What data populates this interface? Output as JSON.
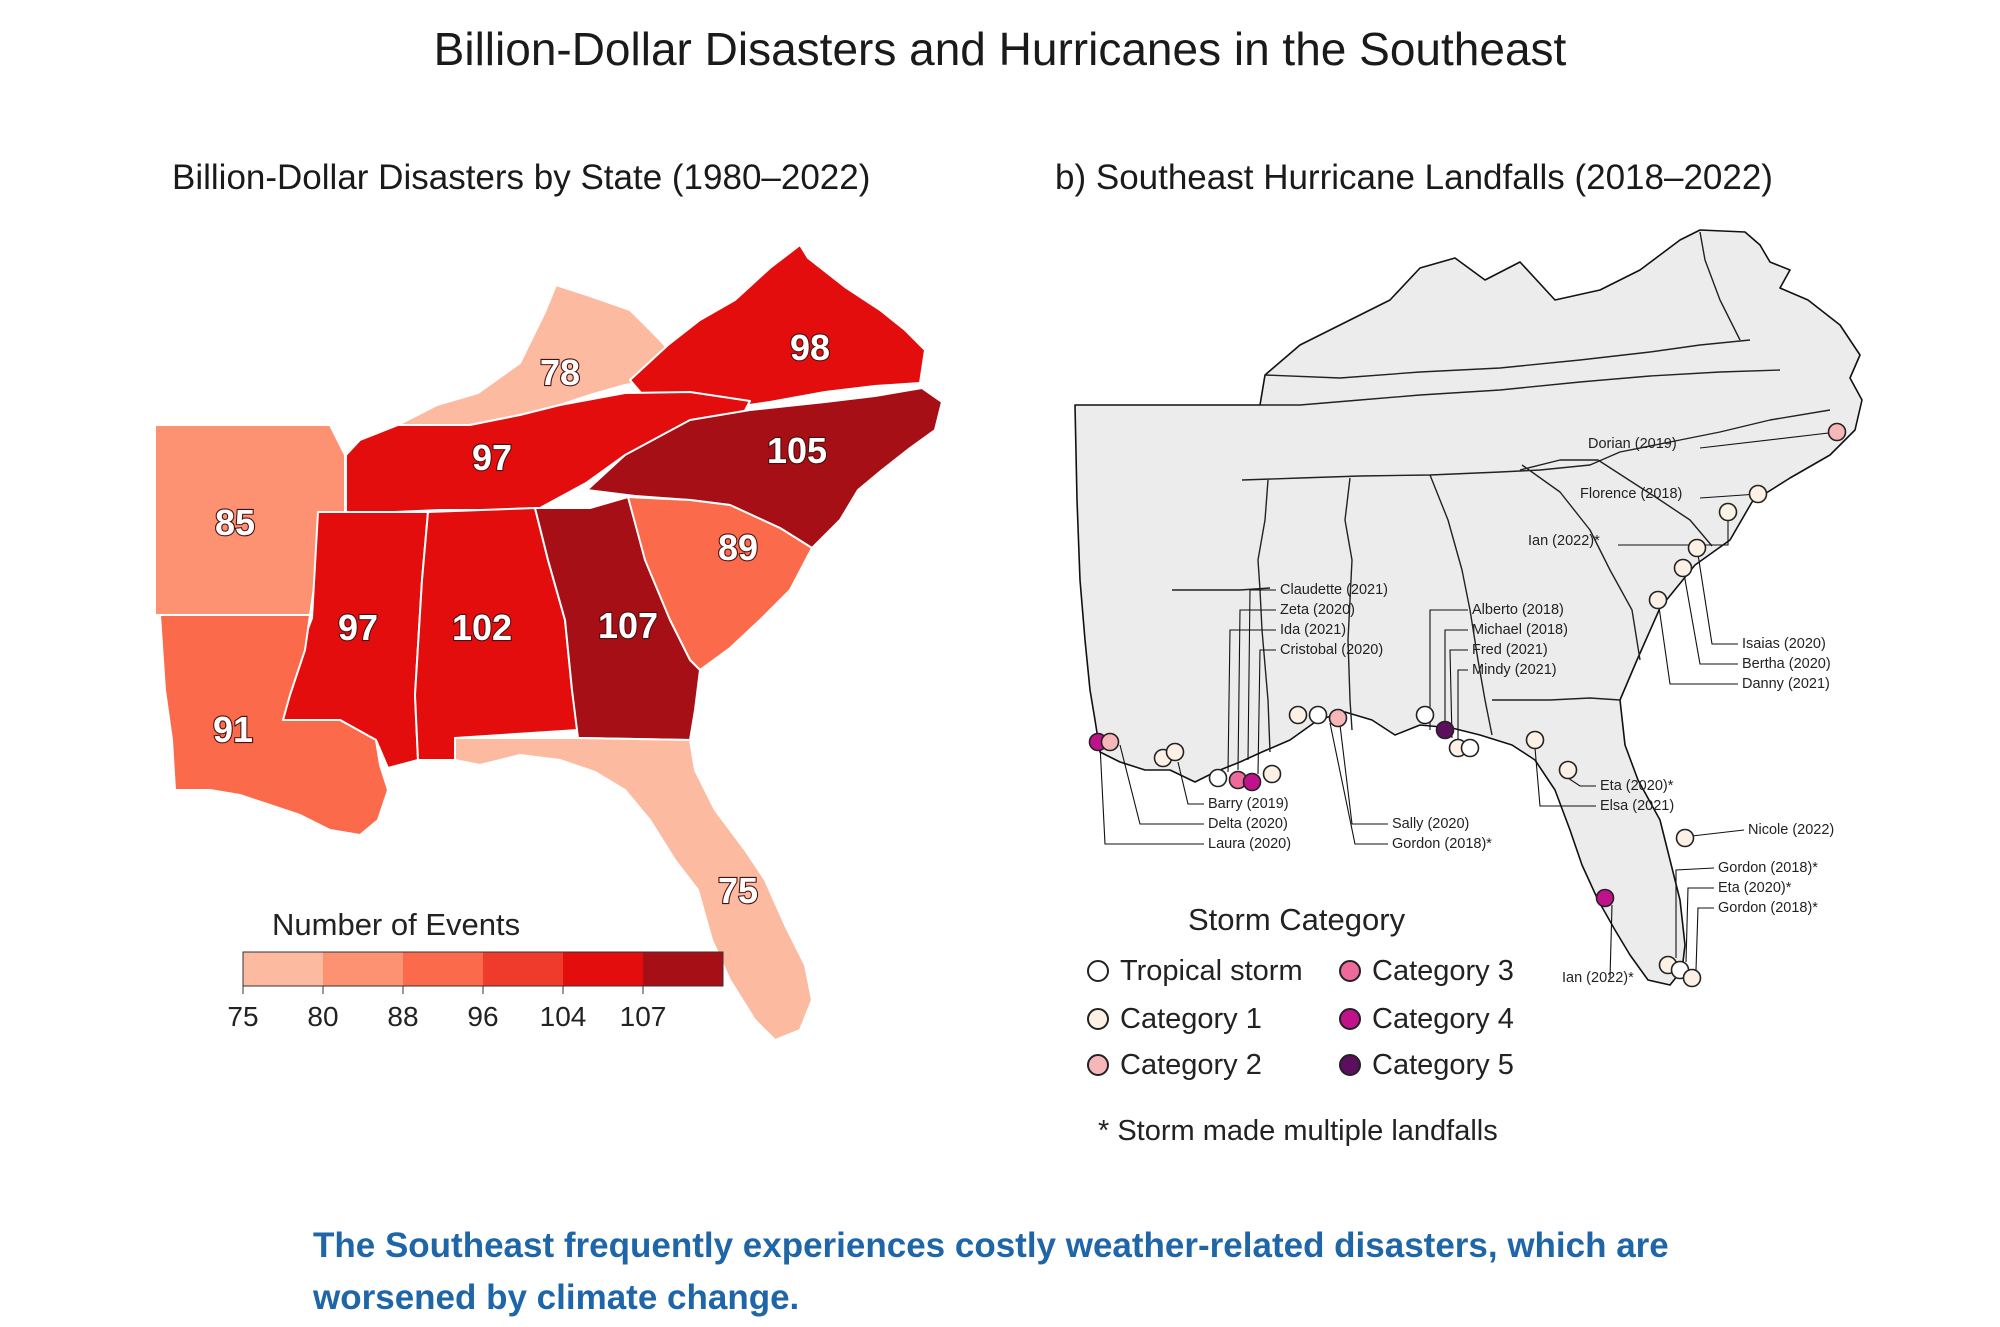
{
  "title": "Billion-Dollar Disasters and Hurricanes in the Southeast",
  "left_panel": {
    "title": "Billion-Dollar Disasters by State (1980–2022)",
    "states": [
      {
        "state": "Kentucky",
        "events": 78
      },
      {
        "state": "Virginia",
        "events": 98
      },
      {
        "state": "Arkansas",
        "events": 85
      },
      {
        "state": "Tennessee",
        "events": 97
      },
      {
        "state": "North Carolina",
        "events": 105
      },
      {
        "state": "South Carolina",
        "events": 89
      },
      {
        "state": "Mississippi",
        "events": 97
      },
      {
        "state": "Alabama",
        "events": 102
      },
      {
        "state": "Georgia",
        "events": 107
      },
      {
        "state": "Louisiana",
        "events": 91
      },
      {
        "state": "Florida",
        "events": 75
      }
    ],
    "legend": {
      "title": "Number of Events",
      "breaks": [
        "75",
        "80",
        "88",
        "96",
        "104",
        "107"
      ],
      "colors": [
        "#fcbba1",
        "#fc9272",
        "#fb6a4a",
        "#ef3b2c",
        "#e30d0d",
        "#a50f15"
      ]
    }
  },
  "right_panel": {
    "title": "b)  Southeast Hurricane Landfalls (2018–2022)",
    "landfall_labels": [
      "Dorian (2019)",
      "Florence (2018)",
      "Ian (2022)*",
      "Isaias (2020)",
      "Bertha (2020)",
      "Danny (2021)",
      "Claudette (2021)",
      "Zeta (2020)",
      "Ida (2021)",
      "Cristobal (2020)",
      "Alberto (2018)",
      "Michael (2018)",
      "Fred (2021)",
      "Mindy (2021)",
      "Barry (2019)",
      "Delta (2020)",
      "Laura (2020)",
      "Sally (2020)",
      "Gordon (2018)*",
      "Eta (2020)*",
      "Elsa (2021)",
      "Nicole (2022)",
      "Gordon (2018)*",
      "Eta (2020)*",
      "Gordon (2018)*",
      "Ian (2022)*"
    ],
    "legend": {
      "title": "Storm Category",
      "categories": [
        {
          "label": "Tropical storm",
          "color": "#ffffff"
        },
        {
          "label": "Category 1",
          "color": "#fdf1e6"
        },
        {
          "label": "Category 2",
          "color": "#f7b7b9"
        },
        {
          "label": "Category 3",
          "color": "#ee6a9c"
        },
        {
          "label": "Category 4",
          "color": "#c0128b"
        },
        {
          "label": "Category 5",
          "color": "#5b0f5e"
        }
      ],
      "note": "* Storm made multiple landfalls"
    }
  },
  "caption": "The Southeast frequently experiences costly weather-related disasters, which are worsened by climate change."
}
